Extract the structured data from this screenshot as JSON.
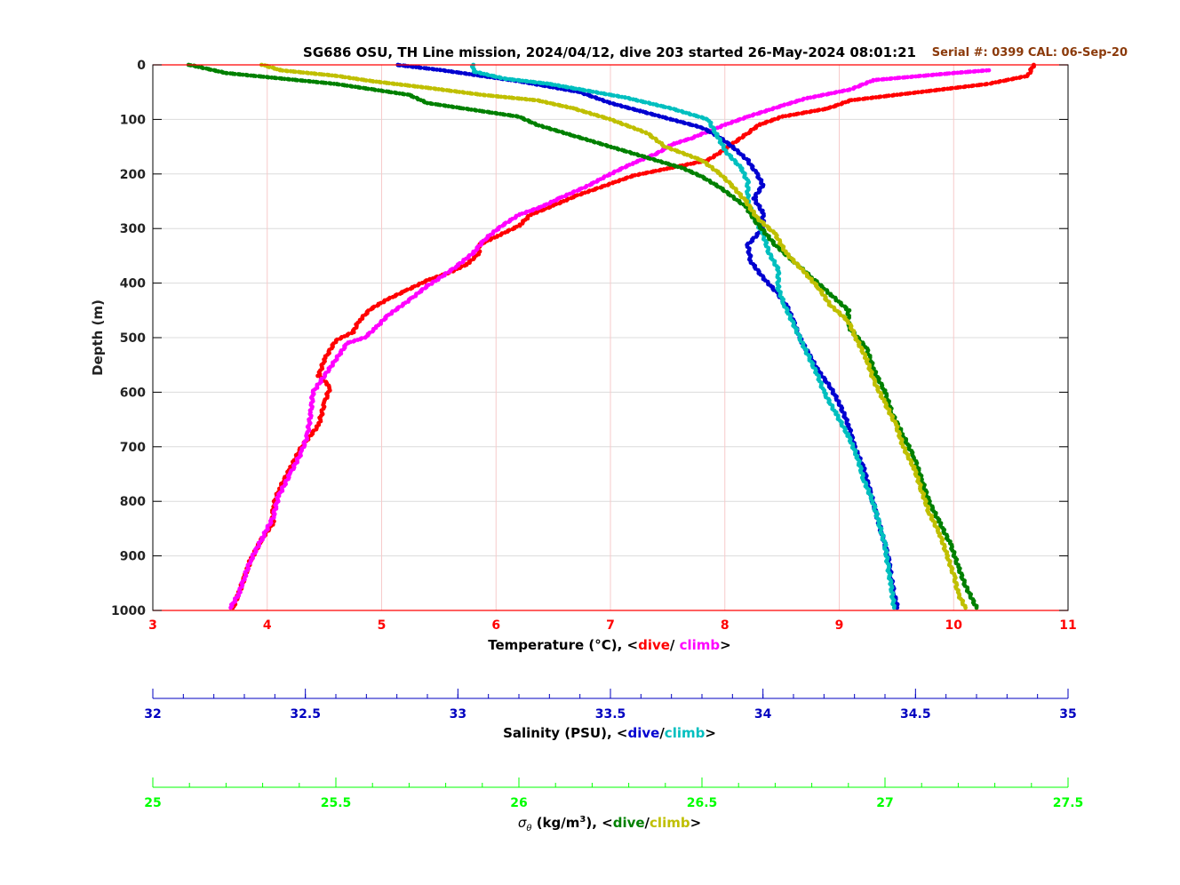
{
  "title": "SG686 OSU, TH Line mission, 2024/04/12, dive 203 started 26-May-2024 08:01:21",
  "serial_note": "Serial #: 0399  CAL: 06-Sep-20",
  "colors": {
    "temp_dive": "#ff0000",
    "temp_climb": "#ff00ff",
    "sal_dive": "#0000d0",
    "sal_climb": "#00bfbf",
    "dens_dive": "#008000",
    "dens_climb": "#bfbf00",
    "temp_axis": "#ff0000",
    "sal_axis": "#0000c0",
    "dens_axis": "#00ff00",
    "serial": "#8b3a0a"
  },
  "chart_data": {
    "type": "scatter",
    "ylabel": "Depth (m)",
    "ylim": [
      0,
      1000
    ],
    "y_reversed": true,
    "y_ticks": [
      "0",
      "100",
      "200",
      "300",
      "400",
      "500",
      "600",
      "700",
      "800",
      "900",
      "1000"
    ],
    "grid": true,
    "axes": {
      "temperature": {
        "label_prefix": "Temperature (°C), <",
        "label_dive": "dive",
        "label_sep": "/ ",
        "label_climb": "climb",
        "label_suffix": ">",
        "xlim": [
          3,
          11
        ],
        "ticks": [
          "3",
          "4",
          "5",
          "6",
          "7",
          "8",
          "9",
          "10",
          "11"
        ]
      },
      "salinity": {
        "label_prefix": "Salinity (PSU), <",
        "label_dive": "dive",
        "label_sep": "/",
        "label_climb": "climb",
        "label_suffix": ">",
        "xlim": [
          32,
          35
        ],
        "ticks": [
          "32",
          "32.5",
          "33",
          "33.5",
          "34",
          "34.5",
          "35"
        ]
      },
      "density": {
        "label_symbol": "σ",
        "label_sub": "θ",
        "label_units": " (kg/m",
        "label_sup": "3",
        "label_prefix": "), <",
        "label_dive": "dive",
        "label_sep": "/",
        "label_climb": "climb",
        "label_suffix": ">",
        "xlim": [
          25,
          27.5
        ],
        "ticks": [
          "25",
          "25.5",
          "26",
          "26.5",
          "27",
          "27.5"
        ]
      }
    },
    "series": [
      {
        "name": "Temperature dive",
        "axis": "temperature",
        "color_key": "temp_dive",
        "points": [
          [
            10.7,
            0
          ],
          [
            10.65,
            20
          ],
          [
            10.3,
            35
          ],
          [
            9.1,
            65
          ],
          [
            8.9,
            80
          ],
          [
            8.5,
            95
          ],
          [
            8.3,
            110
          ],
          [
            8.2,
            125
          ],
          [
            8.0,
            155
          ],
          [
            7.85,
            175
          ],
          [
            7.5,
            190
          ],
          [
            7.2,
            203
          ],
          [
            7.0,
            218
          ],
          [
            6.7,
            240
          ],
          [
            6.5,
            258
          ],
          [
            6.3,
            275
          ],
          [
            6.2,
            295
          ],
          [
            6.0,
            315
          ],
          [
            5.85,
            330
          ],
          [
            5.85,
            345
          ],
          [
            5.75,
            365
          ],
          [
            5.6,
            380
          ],
          [
            5.4,
            395
          ],
          [
            5.2,
            415
          ],
          [
            5.05,
            430
          ],
          [
            4.9,
            448
          ],
          [
            4.8,
            470
          ],
          [
            4.75,
            490
          ],
          [
            4.6,
            505
          ],
          [
            4.5,
            540
          ],
          [
            4.45,
            570
          ],
          [
            4.55,
            590
          ],
          [
            4.5,
            620
          ],
          [
            4.45,
            660
          ],
          [
            4.3,
            700
          ],
          [
            4.2,
            740
          ],
          [
            4.1,
            780
          ],
          [
            4.05,
            810
          ],
          [
            4.05,
            840
          ],
          [
            3.95,
            870
          ],
          [
            3.85,
            910
          ],
          [
            3.8,
            940
          ],
          [
            3.75,
            970
          ],
          [
            3.7,
            995
          ]
        ]
      },
      {
        "name": "Temperature climb",
        "axis": "temperature",
        "color_key": "temp_climb",
        "points": [
          [
            10.3,
            10
          ],
          [
            10.0,
            15
          ],
          [
            9.3,
            28
          ],
          [
            9.1,
            45
          ],
          [
            8.7,
            62
          ],
          [
            8.5,
            75
          ],
          [
            8.2,
            95
          ],
          [
            8.0,
            110
          ],
          [
            7.7,
            135
          ],
          [
            7.55,
            145
          ],
          [
            7.4,
            163
          ],
          [
            7.2,
            180
          ],
          [
            7.0,
            200
          ],
          [
            6.8,
            222
          ],
          [
            6.55,
            245
          ],
          [
            6.4,
            260
          ],
          [
            6.2,
            275
          ],
          [
            6.05,
            295
          ],
          [
            5.9,
            320
          ],
          [
            5.8,
            345
          ],
          [
            5.65,
            370
          ],
          [
            5.5,
            392
          ],
          [
            5.4,
            405
          ],
          [
            5.25,
            430
          ],
          [
            5.05,
            460
          ],
          [
            4.95,
            482
          ],
          [
            4.85,
            500
          ],
          [
            4.7,
            510
          ],
          [
            4.6,
            540
          ],
          [
            4.5,
            570
          ],
          [
            4.4,
            600
          ],
          [
            4.38,
            640
          ],
          [
            4.35,
            680
          ],
          [
            4.3,
            710
          ],
          [
            4.2,
            750
          ],
          [
            4.1,
            790
          ],
          [
            4.05,
            830
          ],
          [
            3.95,
            870
          ],
          [
            3.85,
            910
          ],
          [
            3.8,
            940
          ],
          [
            3.75,
            970
          ],
          [
            3.68,
            995
          ]
        ]
      },
      {
        "name": "Salinity dive",
        "axis": "salinity",
        "color_key": "sal_dive",
        "points": [
          [
            32.8,
            0
          ],
          [
            32.95,
            10
          ],
          [
            33.2,
            30
          ],
          [
            33.4,
            50
          ],
          [
            33.5,
            70
          ],
          [
            33.6,
            85
          ],
          [
            33.7,
            100
          ],
          [
            33.8,
            115
          ],
          [
            33.85,
            130
          ],
          [
            33.9,
            150
          ],
          [
            33.95,
            175
          ],
          [
            33.98,
            200
          ],
          [
            34.0,
            220
          ],
          [
            33.97,
            245
          ],
          [
            34.0,
            270
          ],
          [
            34.0,
            300
          ],
          [
            33.95,
            330
          ],
          [
            33.96,
            360
          ],
          [
            34.0,
            390
          ],
          [
            34.05,
            420
          ],
          [
            34.08,
            445
          ],
          [
            34.1,
            470
          ],
          [
            34.12,
            500
          ],
          [
            34.15,
            530
          ],
          [
            34.18,
            560
          ],
          [
            34.22,
            590
          ],
          [
            34.25,
            620
          ],
          [
            34.28,
            660
          ],
          [
            34.3,
            700
          ],
          [
            34.33,
            740
          ],
          [
            34.35,
            780
          ],
          [
            34.37,
            820
          ],
          [
            34.39,
            860
          ],
          [
            34.41,
            900
          ],
          [
            34.42,
            940
          ],
          [
            34.43,
            970
          ],
          [
            34.44,
            995
          ]
        ]
      },
      {
        "name": "Salinity climb",
        "axis": "salinity",
        "color_key": "sal_climb",
        "points": [
          [
            33.05,
            0
          ],
          [
            33.05,
            12
          ],
          [
            33.15,
            25
          ],
          [
            33.3,
            35
          ],
          [
            33.4,
            45
          ],
          [
            33.55,
            60
          ],
          [
            33.7,
            80
          ],
          [
            33.82,
            100
          ],
          [
            33.85,
            130
          ],
          [
            33.88,
            160
          ],
          [
            33.93,
            190
          ],
          [
            33.95,
            215
          ],
          [
            33.95,
            250
          ],
          [
            33.97,
            280
          ],
          [
            34.0,
            310
          ],
          [
            34.02,
            345
          ],
          [
            34.05,
            375
          ],
          [
            34.05,
            410
          ],
          [
            34.07,
            440
          ],
          [
            34.1,
            475
          ],
          [
            34.12,
            500
          ],
          [
            34.15,
            535
          ],
          [
            34.18,
            570
          ],
          [
            34.2,
            600
          ],
          [
            34.24,
            640
          ],
          [
            34.28,
            680
          ],
          [
            34.31,
            720
          ],
          [
            34.33,
            760
          ],
          [
            34.36,
            800
          ],
          [
            34.38,
            840
          ],
          [
            34.4,
            880
          ],
          [
            34.41,
            920
          ],
          [
            34.42,
            955
          ],
          [
            34.43,
            995
          ]
        ]
      },
      {
        "name": "Density dive",
        "axis": "density",
        "color_key": "dens_dive",
        "points": [
          [
            25.1,
            0
          ],
          [
            25.2,
            15
          ],
          [
            25.35,
            25
          ],
          [
            25.5,
            35
          ],
          [
            25.6,
            45
          ],
          [
            25.7,
            55
          ],
          [
            25.75,
            70
          ],
          [
            25.85,
            80
          ],
          [
            26.0,
            95
          ],
          [
            26.05,
            110
          ],
          [
            26.15,
            130
          ],
          [
            26.25,
            150
          ],
          [
            26.35,
            170
          ],
          [
            26.45,
            190
          ],
          [
            26.5,
            205
          ],
          [
            26.55,
            225
          ],
          [
            26.62,
            260
          ],
          [
            26.65,
            290
          ],
          [
            26.7,
            330
          ],
          [
            26.75,
            360
          ],
          [
            26.8,
            390
          ],
          [
            26.85,
            420
          ],
          [
            26.9,
            450
          ],
          [
            26.9,
            480
          ],
          [
            26.95,
            520
          ],
          [
            26.97,
            560
          ],
          [
            27.0,
            600
          ],
          [
            27.02,
            640
          ],
          [
            27.05,
            680
          ],
          [
            27.08,
            720
          ],
          [
            27.1,
            760
          ],
          [
            27.12,
            800
          ],
          [
            27.15,
            840
          ],
          [
            27.18,
            880
          ],
          [
            27.2,
            920
          ],
          [
            27.22,
            955
          ],
          [
            27.25,
            995
          ]
        ]
      },
      {
        "name": "Density climb",
        "axis": "density",
        "color_key": "dens_climb",
        "points": [
          [
            25.3,
            0
          ],
          [
            25.35,
            10
          ],
          [
            25.5,
            20
          ],
          [
            25.6,
            30
          ],
          [
            25.75,
            42
          ],
          [
            25.9,
            55
          ],
          [
            26.05,
            65
          ],
          [
            26.15,
            80
          ],
          [
            26.25,
            100
          ],
          [
            26.35,
            125
          ],
          [
            26.4,
            150
          ],
          [
            26.5,
            175
          ],
          [
            26.55,
            200
          ],
          [
            26.58,
            220
          ],
          [
            26.62,
            250
          ],
          [
            26.65,
            280
          ],
          [
            26.7,
            310
          ],
          [
            26.73,
            345
          ],
          [
            26.78,
            380
          ],
          [
            26.82,
            410
          ],
          [
            26.85,
            440
          ],
          [
            26.9,
            470
          ],
          [
            26.92,
            500
          ],
          [
            26.95,
            540
          ],
          [
            26.97,
            580
          ],
          [
            27.0,
            620
          ],
          [
            27.03,
            660
          ],
          [
            27.05,
            700
          ],
          [
            27.08,
            740
          ],
          [
            27.1,
            780
          ],
          [
            27.12,
            820
          ],
          [
            27.15,
            860
          ],
          [
            27.17,
            900
          ],
          [
            27.19,
            940
          ],
          [
            27.2,
            970
          ],
          [
            27.22,
            995
          ]
        ]
      }
    ]
  }
}
